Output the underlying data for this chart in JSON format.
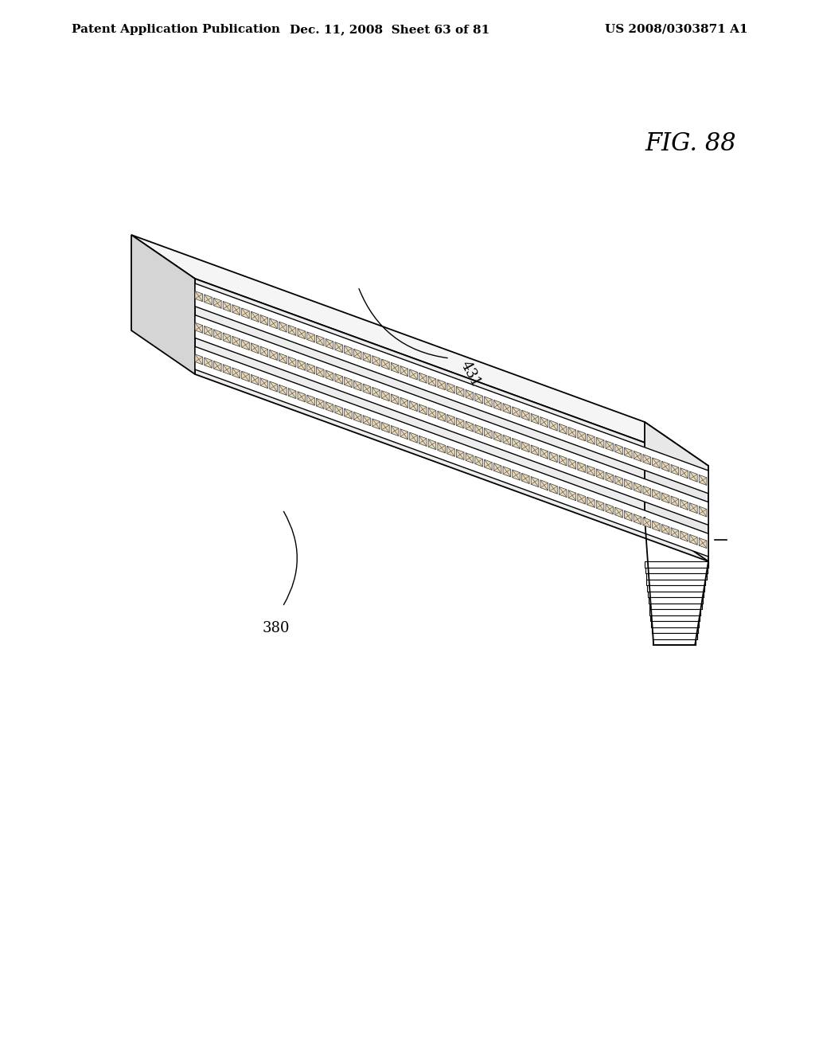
{
  "header_left": "Patent Application Publication",
  "header_center": "Dec. 11, 2008  Sheet 63 of 81",
  "header_right": "US 2008/0303871 A1",
  "fig_label": "FIG. 88",
  "label_431": "431",
  "label_380": "380",
  "background_color": "#ffffff",
  "line_color": "#000000",
  "header_fontsize": 11,
  "fig_label_fontsize": 20
}
